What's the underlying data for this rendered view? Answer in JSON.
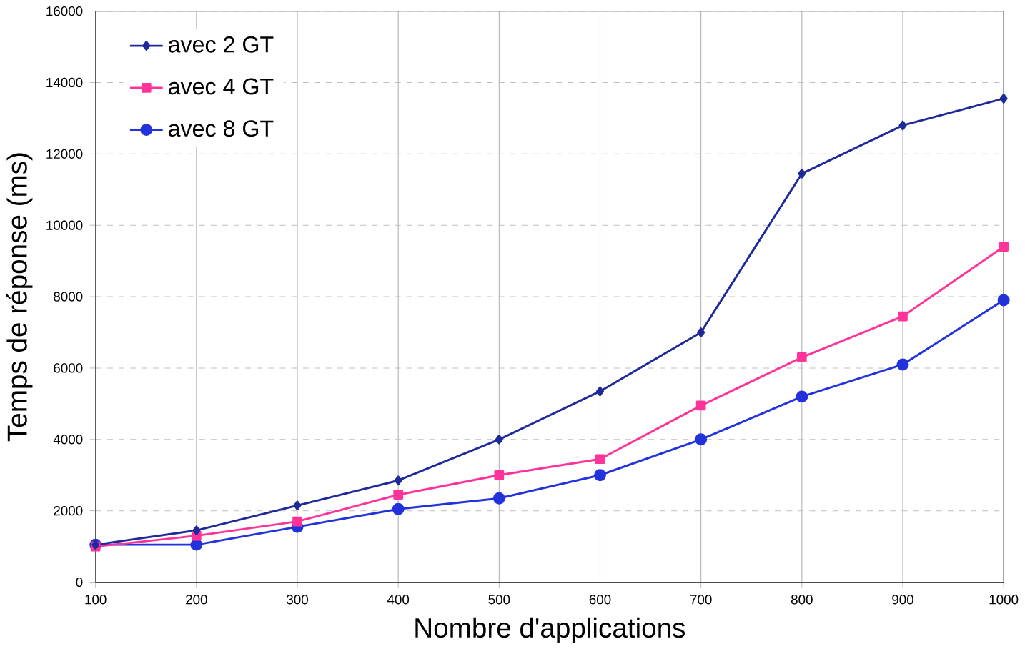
{
  "chart_data": {
    "type": "line",
    "xlabel": "Nombre d'applications",
    "ylabel": "Temps de réponse (ms)",
    "x": [
      100,
      200,
      300,
      400,
      500,
      600,
      700,
      800,
      900,
      1000
    ],
    "series": [
      {
        "name": "avec 2 GT",
        "color": "#1f2a9a",
        "marker": "diamond",
        "values": [
          1050,
          1450,
          2150,
          2850,
          4000,
          5350,
          7000,
          11450,
          12800,
          13550
        ]
      },
      {
        "name": "avec 4 GT",
        "color": "#ff3399",
        "marker": "square",
        "values": [
          1000,
          1300,
          1700,
          2450,
          3000,
          3450,
          4950,
          6300,
          7450,
          9400
        ]
      },
      {
        "name": "avec 8 GT",
        "color": "#2233dd",
        "marker": "circle",
        "values": [
          1050,
          1050,
          1550,
          2050,
          2350,
          3000,
          4000,
          5200,
          6100,
          7900
        ]
      }
    ],
    "xlim": [
      100,
      1000
    ],
    "xticks": [
      100,
      200,
      300,
      400,
      500,
      600,
      700,
      800,
      900,
      1000
    ],
    "ylim": [
      0,
      16000
    ],
    "yticks": [
      0,
      2000,
      4000,
      6000,
      8000,
      10000,
      12000,
      14000,
      16000
    ],
    "grid": true,
    "legend": "top left"
  }
}
